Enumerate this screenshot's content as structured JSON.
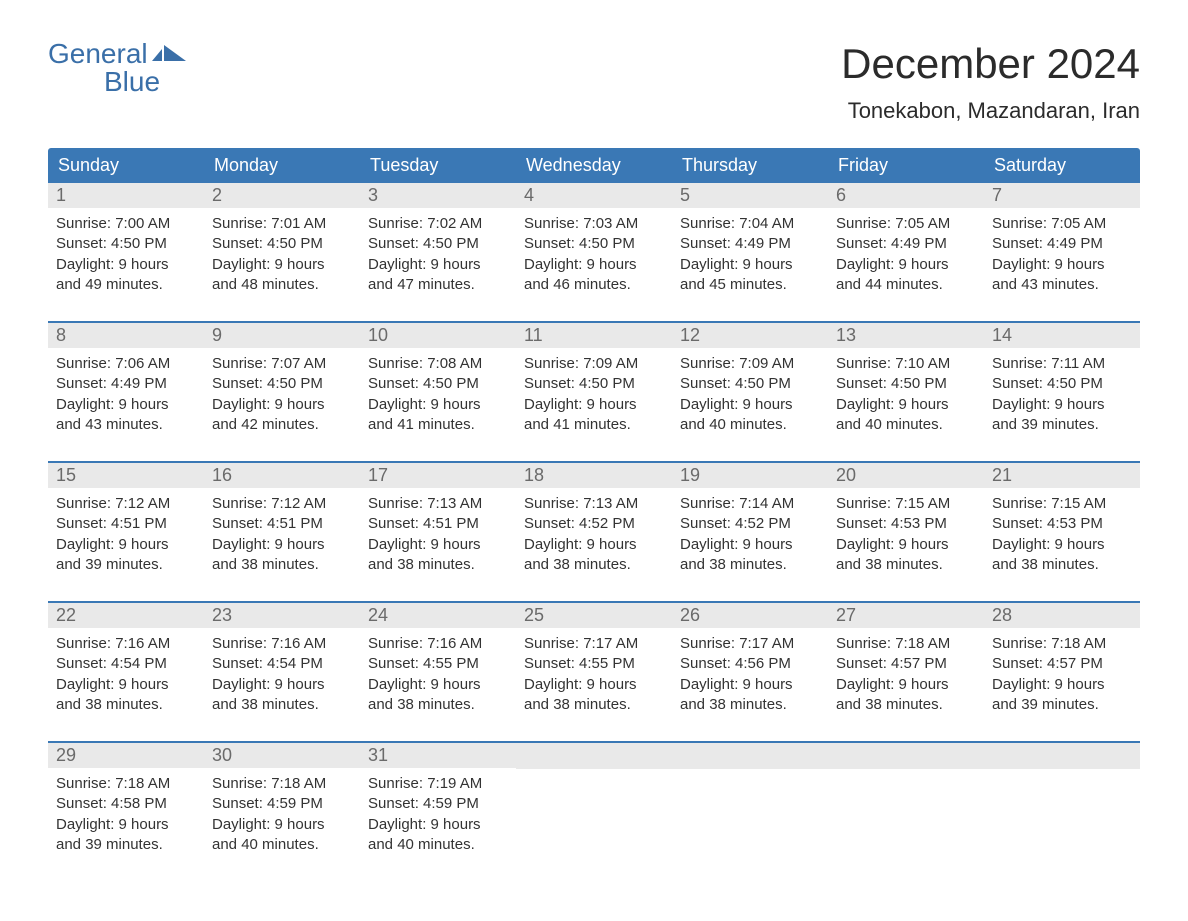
{
  "logo": {
    "word1": "General",
    "word2": "Blue"
  },
  "title": "December 2024",
  "location": "Tonekabon, Mazandaran, Iran",
  "colors": {
    "header_bg": "#3a78b5",
    "header_text": "#ffffff",
    "daynum_bg": "#e9e9e9",
    "daynum_text": "#6a6a6a",
    "body_text": "#333333",
    "logo_color": "#3a6fa8",
    "week_border": "#3a78b5"
  },
  "dayNames": [
    "Sunday",
    "Monday",
    "Tuesday",
    "Wednesday",
    "Thursday",
    "Friday",
    "Saturday"
  ],
  "weeks": [
    [
      {
        "n": "1",
        "sr": "7:00 AM",
        "ss": "4:50 PM",
        "dl1": "9 hours",
        "dl2": "49 minutes."
      },
      {
        "n": "2",
        "sr": "7:01 AM",
        "ss": "4:50 PM",
        "dl1": "9 hours",
        "dl2": "48 minutes."
      },
      {
        "n": "3",
        "sr": "7:02 AM",
        "ss": "4:50 PM",
        "dl1": "9 hours",
        "dl2": "47 minutes."
      },
      {
        "n": "4",
        "sr": "7:03 AM",
        "ss": "4:50 PM",
        "dl1": "9 hours",
        "dl2": "46 minutes."
      },
      {
        "n": "5",
        "sr": "7:04 AM",
        "ss": "4:49 PM",
        "dl1": "9 hours",
        "dl2": "45 minutes."
      },
      {
        "n": "6",
        "sr": "7:05 AM",
        "ss": "4:49 PM",
        "dl1": "9 hours",
        "dl2": "44 minutes."
      },
      {
        "n": "7",
        "sr": "7:05 AM",
        "ss": "4:49 PM",
        "dl1": "9 hours",
        "dl2": "43 minutes."
      }
    ],
    [
      {
        "n": "8",
        "sr": "7:06 AM",
        "ss": "4:49 PM",
        "dl1": "9 hours",
        "dl2": "43 minutes."
      },
      {
        "n": "9",
        "sr": "7:07 AM",
        "ss": "4:50 PM",
        "dl1": "9 hours",
        "dl2": "42 minutes."
      },
      {
        "n": "10",
        "sr": "7:08 AM",
        "ss": "4:50 PM",
        "dl1": "9 hours",
        "dl2": "41 minutes."
      },
      {
        "n": "11",
        "sr": "7:09 AM",
        "ss": "4:50 PM",
        "dl1": "9 hours",
        "dl2": "41 minutes."
      },
      {
        "n": "12",
        "sr": "7:09 AM",
        "ss": "4:50 PM",
        "dl1": "9 hours",
        "dl2": "40 minutes."
      },
      {
        "n": "13",
        "sr": "7:10 AM",
        "ss": "4:50 PM",
        "dl1": "9 hours",
        "dl2": "40 minutes."
      },
      {
        "n": "14",
        "sr": "7:11 AM",
        "ss": "4:50 PM",
        "dl1": "9 hours",
        "dl2": "39 minutes."
      }
    ],
    [
      {
        "n": "15",
        "sr": "7:12 AM",
        "ss": "4:51 PM",
        "dl1": "9 hours",
        "dl2": "39 minutes."
      },
      {
        "n": "16",
        "sr": "7:12 AM",
        "ss": "4:51 PM",
        "dl1": "9 hours",
        "dl2": "38 minutes."
      },
      {
        "n": "17",
        "sr": "7:13 AM",
        "ss": "4:51 PM",
        "dl1": "9 hours",
        "dl2": "38 minutes."
      },
      {
        "n": "18",
        "sr": "7:13 AM",
        "ss": "4:52 PM",
        "dl1": "9 hours",
        "dl2": "38 minutes."
      },
      {
        "n": "19",
        "sr": "7:14 AM",
        "ss": "4:52 PM",
        "dl1": "9 hours",
        "dl2": "38 minutes."
      },
      {
        "n": "20",
        "sr": "7:15 AM",
        "ss": "4:53 PM",
        "dl1": "9 hours",
        "dl2": "38 minutes."
      },
      {
        "n": "21",
        "sr": "7:15 AM",
        "ss": "4:53 PM",
        "dl1": "9 hours",
        "dl2": "38 minutes."
      }
    ],
    [
      {
        "n": "22",
        "sr": "7:16 AM",
        "ss": "4:54 PM",
        "dl1": "9 hours",
        "dl2": "38 minutes."
      },
      {
        "n": "23",
        "sr": "7:16 AM",
        "ss": "4:54 PM",
        "dl1": "9 hours",
        "dl2": "38 minutes."
      },
      {
        "n": "24",
        "sr": "7:16 AM",
        "ss": "4:55 PM",
        "dl1": "9 hours",
        "dl2": "38 minutes."
      },
      {
        "n": "25",
        "sr": "7:17 AM",
        "ss": "4:55 PM",
        "dl1": "9 hours",
        "dl2": "38 minutes."
      },
      {
        "n": "26",
        "sr": "7:17 AM",
        "ss": "4:56 PM",
        "dl1": "9 hours",
        "dl2": "38 minutes."
      },
      {
        "n": "27",
        "sr": "7:18 AM",
        "ss": "4:57 PM",
        "dl1": "9 hours",
        "dl2": "38 minutes."
      },
      {
        "n": "28",
        "sr": "7:18 AM",
        "ss": "4:57 PM",
        "dl1": "9 hours",
        "dl2": "39 minutes."
      }
    ],
    [
      {
        "n": "29",
        "sr": "7:18 AM",
        "ss": "4:58 PM",
        "dl1": "9 hours",
        "dl2": "39 minutes."
      },
      {
        "n": "30",
        "sr": "7:18 AM",
        "ss": "4:59 PM",
        "dl1": "9 hours",
        "dl2": "40 minutes."
      },
      {
        "n": "31",
        "sr": "7:19 AM",
        "ss": "4:59 PM",
        "dl1": "9 hours",
        "dl2": "40 minutes."
      },
      null,
      null,
      null,
      null
    ]
  ],
  "labels": {
    "sunrise": "Sunrise:",
    "sunset": "Sunset:",
    "daylight": "Daylight:",
    "and": "and"
  }
}
